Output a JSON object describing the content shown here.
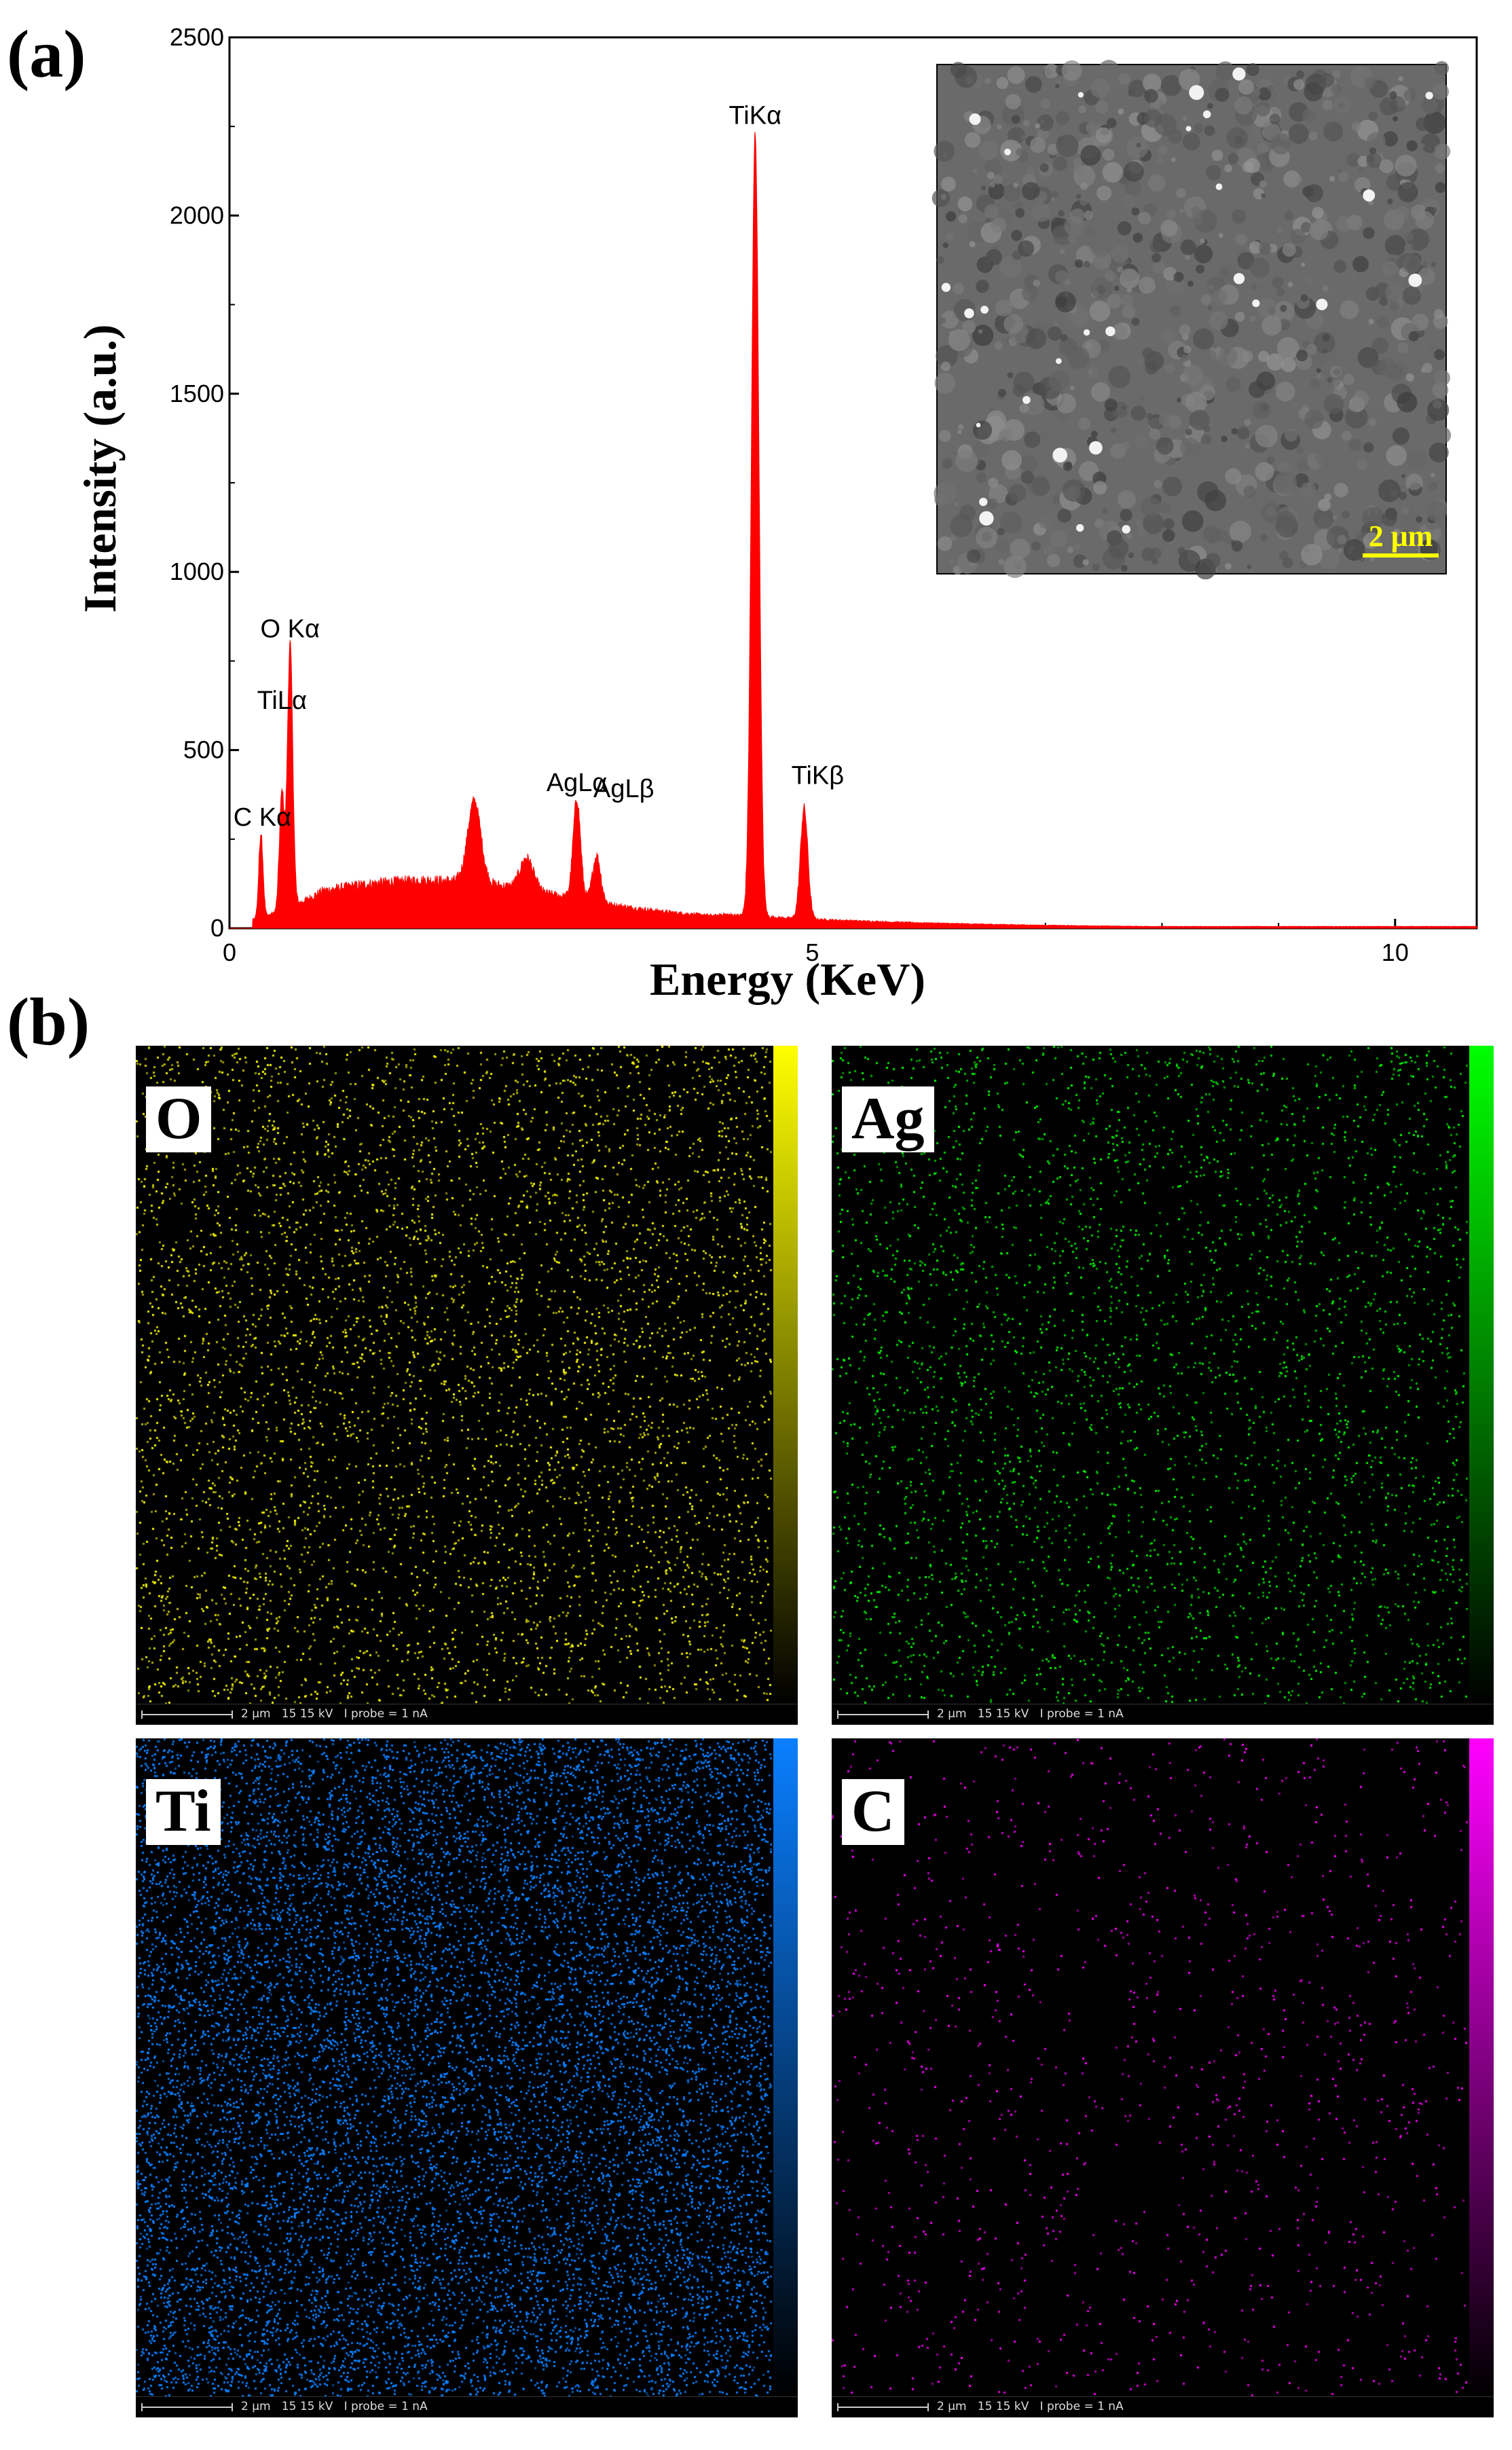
{
  "panel_labels": {
    "a": "(a)",
    "b": "(b)"
  },
  "chart_data": {
    "type": "area",
    "title": "",
    "xlabel": "Energy (KeV)",
    "ylabel": "Intensity (a.u.)",
    "xlim": [
      0,
      10.7
    ],
    "ylim": [
      0,
      2500
    ],
    "x_ticks": [
      0,
      5,
      10
    ],
    "y_ticks": [
      0,
      500,
      1000,
      1500,
      2000,
      2500
    ],
    "series_color": "#ff0000",
    "peaks": [
      {
        "label": "C Kα",
        "energy": 0.27,
        "intensity": 240
      },
      {
        "label": "TiLα",
        "energy": 0.45,
        "intensity": 330
      },
      {
        "label": "O Kα",
        "energy": 0.52,
        "intensity": 740
      },
      {
        "label": "AgLα",
        "energy": 2.98,
        "intensity": 280
      },
      {
        "label": "AgLβ",
        "energy": 3.15,
        "intensity": 130
      },
      {
        "label": "TiKα",
        "energy": 4.51,
        "intensity": 2200
      },
      {
        "label": "TiKβ",
        "energy": 4.93,
        "intensity": 310
      }
    ],
    "other_features": [
      {
        "energy": 2.1,
        "intensity": 230
      },
      {
        "energy": 2.55,
        "intensity": 90
      }
    ],
    "annotations": [
      "TiKα",
      "TiLα",
      "O Kα",
      "C Kα",
      "AgLβ",
      "AgLα",
      "TiKβ"
    ]
  },
  "inset": {
    "scale_label": "2 μm"
  },
  "maps": [
    {
      "element": "O",
      "color": "#ffff00",
      "density": 0.05,
      "footer": "2 μm   15 15 kV   I probe = 1 nA"
    },
    {
      "element": "Ag",
      "color": "#00ff00",
      "density": 0.035,
      "footer": "2 μm   15 15 kV   I probe = 1 nA"
    },
    {
      "element": "Ti",
      "color": "#0a7fff",
      "density": 0.22,
      "footer": "2 μm   15 15 kV   I probe = 1 nA"
    },
    {
      "element": "C",
      "color": "#ff00ff",
      "density": 0.012,
      "footer": "2 μm   15 15 kV   I probe = 1 nA"
    }
  ]
}
